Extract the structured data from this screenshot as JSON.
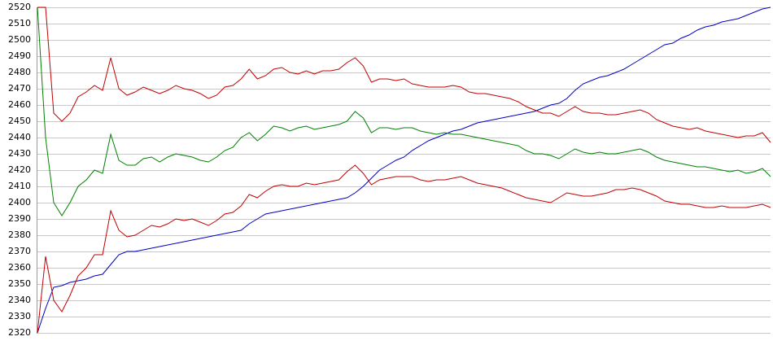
{
  "chart_data": {
    "type": "line",
    "ylim": [
      2320,
      2520
    ],
    "yticks": [
      2320,
      2330,
      2340,
      2350,
      2360,
      2370,
      2380,
      2390,
      2400,
      2410,
      2420,
      2430,
      2440,
      2450,
      2460,
      2470,
      2480,
      2490,
      2500,
      2510,
      2520
    ],
    "grid": true,
    "series": [
      {
        "color": "#0000c0",
        "values": [
          2320,
          2335,
          2348,
          2349,
          2351,
          2352,
          2353,
          2355,
          2356,
          2362,
          2368,
          2370,
          2370,
          2371,
          2372,
          2373,
          2374,
          2375,
          2376,
          2377,
          2378,
          2379,
          2380,
          2381,
          2382,
          2383,
          2387,
          2390,
          2393,
          2394,
          2395,
          2396,
          2397,
          2398,
          2399,
          2400,
          2401,
          2402,
          2403,
          2406,
          2410,
          2415,
          2420,
          2423,
          2426,
          2428,
          2432,
          2435,
          2438,
          2440,
          2442,
          2444,
          2445,
          2447,
          2449,
          2450,
          2451,
          2452,
          2453,
          2454,
          2455,
          2456,
          2458,
          2460,
          2461,
          2464,
          2469,
          2473,
          2475,
          2477,
          2478,
          2480,
          2482,
          2485,
          2488,
          2491,
          2494,
          2497,
          2498,
          2501,
          2503,
          2506,
          2508,
          2509,
          2511,
          2512,
          2513,
          2515,
          2517,
          2519,
          2520
        ]
      },
      {
        "color": "#008000",
        "values": [
          2520,
          2440,
          2400,
          2392,
          2400,
          2410,
          2414,
          2420,
          2418,
          2442,
          2426,
          2423,
          2423,
          2427,
          2428,
          2425,
          2428,
          2430,
          2429,
          2428,
          2426,
          2425,
          2428,
          2432,
          2434,
          2440,
          2443,
          2438,
          2442,
          2447,
          2446,
          2444,
          2446,
          2447,
          2445,
          2446,
          2447,
          2448,
          2450,
          2456,
          2452,
          2443,
          2446,
          2446,
          2445,
          2446,
          2446,
          2444,
          2443,
          2442,
          2443,
          2442,
          2442,
          2441,
          2440,
          2439,
          2438,
          2437,
          2436,
          2435,
          2432,
          2430,
          2430,
          2429,
          2427,
          2430,
          2433,
          2431,
          2430,
          2431,
          2430,
          2430,
          2431,
          2432,
          2433,
          2431,
          2428,
          2426,
          2425,
          2424,
          2423,
          2422,
          2422,
          2421,
          2420,
          2419,
          2420,
          2418,
          2419,
          2421,
          2416
        ]
      },
      {
        "color": "#c00000",
        "values": [
          2520,
          2520,
          2455,
          2450,
          2455,
          2465,
          2468,
          2472,
          2469,
          2489,
          2470,
          2466,
          2468,
          2471,
          2469,
          2467,
          2469,
          2472,
          2470,
          2469,
          2467,
          2464,
          2466,
          2471,
          2472,
          2476,
          2482,
          2476,
          2478,
          2482,
          2483,
          2480,
          2479,
          2481,
          2479,
          2481,
          2481,
          2482,
          2486,
          2489,
          2484,
          2474,
          2476,
          2476,
          2475,
          2476,
          2473,
          2472,
          2471,
          2471,
          2471,
          2472,
          2471,
          2468,
          2467,
          2467,
          2466,
          2465,
          2464,
          2462,
          2459,
          2457,
          2455,
          2455,
          2453,
          2456,
          2459,
          2456,
          2455,
          2455,
          2454,
          2454,
          2455,
          2456,
          2457,
          2455,
          2451,
          2449,
          2447,
          2446,
          2445,
          2446,
          2444,
          2443,
          2442,
          2441,
          2440,
          2441,
          2441,
          2443,
          2437
        ]
      },
      {
        "color": "#c00000",
        "values": [
          2320,
          2367,
          2340,
          2333,
          2343,
          2355,
          2360,
          2368,
          2368,
          2395,
          2383,
          2379,
          2380,
          2383,
          2386,
          2385,
          2387,
          2390,
          2389,
          2390,
          2388,
          2386,
          2389,
          2393,
          2394,
          2398,
          2405,
          2403,
          2407,
          2410,
          2411,
          2410,
          2410,
          2412,
          2411,
          2412,
          2413,
          2414,
          2419,
          2423,
          2418,
          2411,
          2414,
          2415,
          2416,
          2416,
          2416,
          2414,
          2413,
          2414,
          2414,
          2415,
          2416,
          2414,
          2412,
          2411,
          2410,
          2409,
          2407,
          2405,
          2403,
          2402,
          2401,
          2400,
          2403,
          2406,
          2405,
          2404,
          2404,
          2405,
          2406,
          2408,
          2408,
          2409,
          2408,
          2406,
          2404,
          2401,
          2400,
          2399,
          2399,
          2398,
          2397,
          2397,
          2398,
          2397,
          2397,
          2397,
          2398,
          2399,
          2397
        ]
      }
    ]
  }
}
